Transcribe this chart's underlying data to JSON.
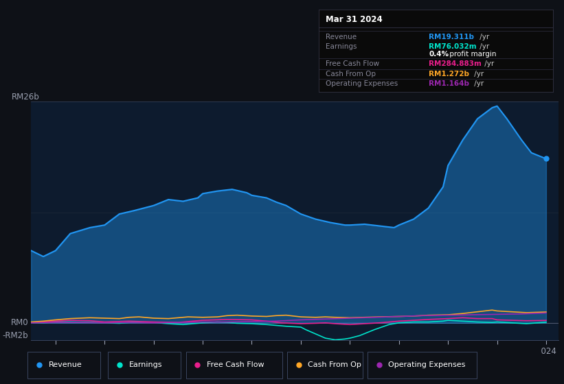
{
  "bg_color": "#0e1117",
  "chart_bg": "#0d1b2e",
  "y_label_top": "RM26b",
  "y_label_zero": "RM0",
  "y_label_neg": "-RM2b",
  "y_max": 26,
  "y_min": -2,
  "tooltip_title": "Mar 31 2024",
  "tooltip_rows": [
    {
      "label": "Revenue",
      "value": "RM19.311b",
      "suffix": " /yr",
      "value_color": "#2196f3"
    },
    {
      "label": "Earnings",
      "value": "RM76.032m",
      "suffix": " /yr",
      "value_color": "#00e5cc"
    },
    {
      "label": "",
      "value": "0.4%",
      "suffix": " profit margin",
      "value_color": "#ffffff"
    },
    {
      "label": "Free Cash Flow",
      "value": "RM284.883m",
      "suffix": " /yr",
      "value_color": "#e91e8c"
    },
    {
      "label": "Cash From Op",
      "value": "RM1.272b",
      "suffix": " /yr",
      "value_color": "#ffa726"
    },
    {
      "label": "Operating Expenses",
      "value": "RM1.164b",
      "suffix": " /yr",
      "value_color": "#9c27b0"
    }
  ],
  "legend_items": [
    {
      "label": "Revenue",
      "color": "#2196f3"
    },
    {
      "label": "Earnings",
      "color": "#00e5cc"
    },
    {
      "label": "Free Cash Flow",
      "color": "#e91e8c"
    },
    {
      "label": "Cash From Op",
      "color": "#ffa726"
    },
    {
      "label": "Operating Expenses",
      "color": "#9c27b0"
    }
  ],
  "revenue_color": "#2196f3",
  "revenue_fill_alpha": 0.4,
  "revenue_x": [
    2013.5,
    2013.75,
    2014.0,
    2014.3,
    2014.7,
    2015.0,
    2015.3,
    2015.6,
    2016.0,
    2016.3,
    2016.6,
    2016.9,
    2017.0,
    2017.3,
    2017.6,
    2017.9,
    2018.0,
    2018.3,
    2018.5,
    2018.7,
    2019.0,
    2019.3,
    2019.6,
    2019.9,
    2020.0,
    2020.3,
    2020.6,
    2020.9,
    2021.0,
    2021.3,
    2021.6,
    2021.9,
    2022.0,
    2022.3,
    2022.6,
    2022.9,
    2023.0,
    2023.2,
    2023.5,
    2023.7,
    2024.0
  ],
  "revenue_y": [
    8.5,
    7.8,
    8.5,
    10.5,
    11.2,
    11.5,
    12.8,
    13.2,
    13.8,
    14.5,
    14.3,
    14.7,
    15.2,
    15.5,
    15.7,
    15.3,
    15.0,
    14.7,
    14.2,
    13.8,
    12.8,
    12.2,
    11.8,
    11.5,
    11.5,
    11.6,
    11.4,
    11.2,
    11.5,
    12.2,
    13.5,
    16.0,
    18.5,
    21.5,
    24.0,
    25.3,
    25.5,
    24.0,
    21.5,
    20.0,
    19.3
  ],
  "earnings_color": "#00e5cc",
  "earnings_x": [
    2013.5,
    2013.75,
    2014.0,
    2014.3,
    2014.7,
    2015.0,
    2015.3,
    2015.6,
    2016.0,
    2016.3,
    2016.6,
    2016.9,
    2017.0,
    2017.3,
    2017.5,
    2017.7,
    2018.0,
    2018.3,
    2018.5,
    2018.7,
    2019.0,
    2019.1,
    2019.3,
    2019.5,
    2019.7,
    2019.9,
    2020.0,
    2020.2,
    2020.5,
    2020.8,
    2021.0,
    2021.3,
    2021.6,
    2021.9,
    2022.0,
    2022.3,
    2022.6,
    2022.9,
    2023.0,
    2023.3,
    2023.6,
    2024.0
  ],
  "earnings_y": [
    0.05,
    0.0,
    0.1,
    0.1,
    0.05,
    0.0,
    -0.05,
    0.1,
    0.05,
    -0.1,
    -0.2,
    -0.05,
    0.0,
    0.1,
    0.05,
    -0.05,
    -0.1,
    -0.2,
    -0.3,
    -0.4,
    -0.5,
    -0.8,
    -1.3,
    -1.8,
    -2.0,
    -1.9,
    -1.8,
    -1.5,
    -0.8,
    -0.2,
    0.0,
    0.1,
    0.1,
    0.2,
    0.3,
    0.2,
    0.1,
    0.05,
    0.1,
    0.0,
    -0.1,
    0.076
  ],
  "fcf_color": "#e91e8c",
  "fcf_x": [
    2013.5,
    2013.75,
    2014.0,
    2014.3,
    2014.7,
    2015.0,
    2015.5,
    2016.0,
    2016.5,
    2017.0,
    2017.5,
    2018.0,
    2018.3,
    2018.6,
    2019.0,
    2019.3,
    2019.5,
    2019.7,
    2020.0,
    2020.3,
    2020.6,
    2021.0,
    2021.3,
    2021.6,
    2022.0,
    2022.3,
    2022.6,
    2022.9,
    2023.0,
    2023.3,
    2023.6,
    2024.0
  ],
  "fcf_y": [
    0.05,
    0.1,
    0.2,
    0.3,
    0.25,
    0.1,
    0.2,
    0.1,
    0.05,
    0.3,
    0.4,
    0.35,
    0.2,
    0.0,
    -0.1,
    -0.05,
    0.0,
    -0.1,
    -0.2,
    -0.1,
    0.0,
    0.2,
    0.3,
    0.4,
    0.5,
    0.6,
    0.5,
    0.5,
    0.35,
    0.3,
    0.25,
    0.285
  ],
  "cfo_color": "#ffa726",
  "cfo_x": [
    2013.5,
    2013.75,
    2014.0,
    2014.3,
    2014.7,
    2015.0,
    2015.3,
    2015.5,
    2015.7,
    2016.0,
    2016.3,
    2016.5,
    2016.7,
    2017.0,
    2017.3,
    2017.5,
    2017.7,
    2018.0,
    2018.3,
    2018.5,
    2018.7,
    2019.0,
    2019.3,
    2019.5,
    2019.7,
    2020.0,
    2020.3,
    2020.6,
    2021.0,
    2021.3,
    2021.6,
    2022.0,
    2022.3,
    2022.6,
    2022.9,
    2023.0,
    2023.3,
    2023.6,
    2024.0
  ],
  "cfo_y": [
    0.1,
    0.2,
    0.35,
    0.5,
    0.6,
    0.55,
    0.5,
    0.65,
    0.7,
    0.55,
    0.5,
    0.6,
    0.7,
    0.65,
    0.7,
    0.85,
    0.9,
    0.8,
    0.75,
    0.85,
    0.9,
    0.7,
    0.65,
    0.7,
    0.65,
    0.6,
    0.65,
    0.7,
    0.75,
    0.8,
    0.9,
    0.95,
    1.1,
    1.3,
    1.5,
    1.4,
    1.3,
    1.2,
    1.272
  ],
  "opex_color": "#9c27b0",
  "opex_x": [
    2013.5,
    2014.0,
    2014.5,
    2015.0,
    2015.5,
    2016.0,
    2016.5,
    2017.0,
    2017.5,
    2018.0,
    2018.5,
    2019.0,
    2019.5,
    2020.0,
    2020.5,
    2021.0,
    2021.5,
    2022.0,
    2022.5,
    2023.0,
    2023.5,
    2024.0
  ],
  "opex_y": [
    0.0,
    0.05,
    0.05,
    0.0,
    0.05,
    0.0,
    0.05,
    0.1,
    0.1,
    0.15,
    0.2,
    0.35,
    0.45,
    0.55,
    0.65,
    0.75,
    0.85,
    0.9,
    0.95,
    1.0,
    1.05,
    1.164
  ]
}
